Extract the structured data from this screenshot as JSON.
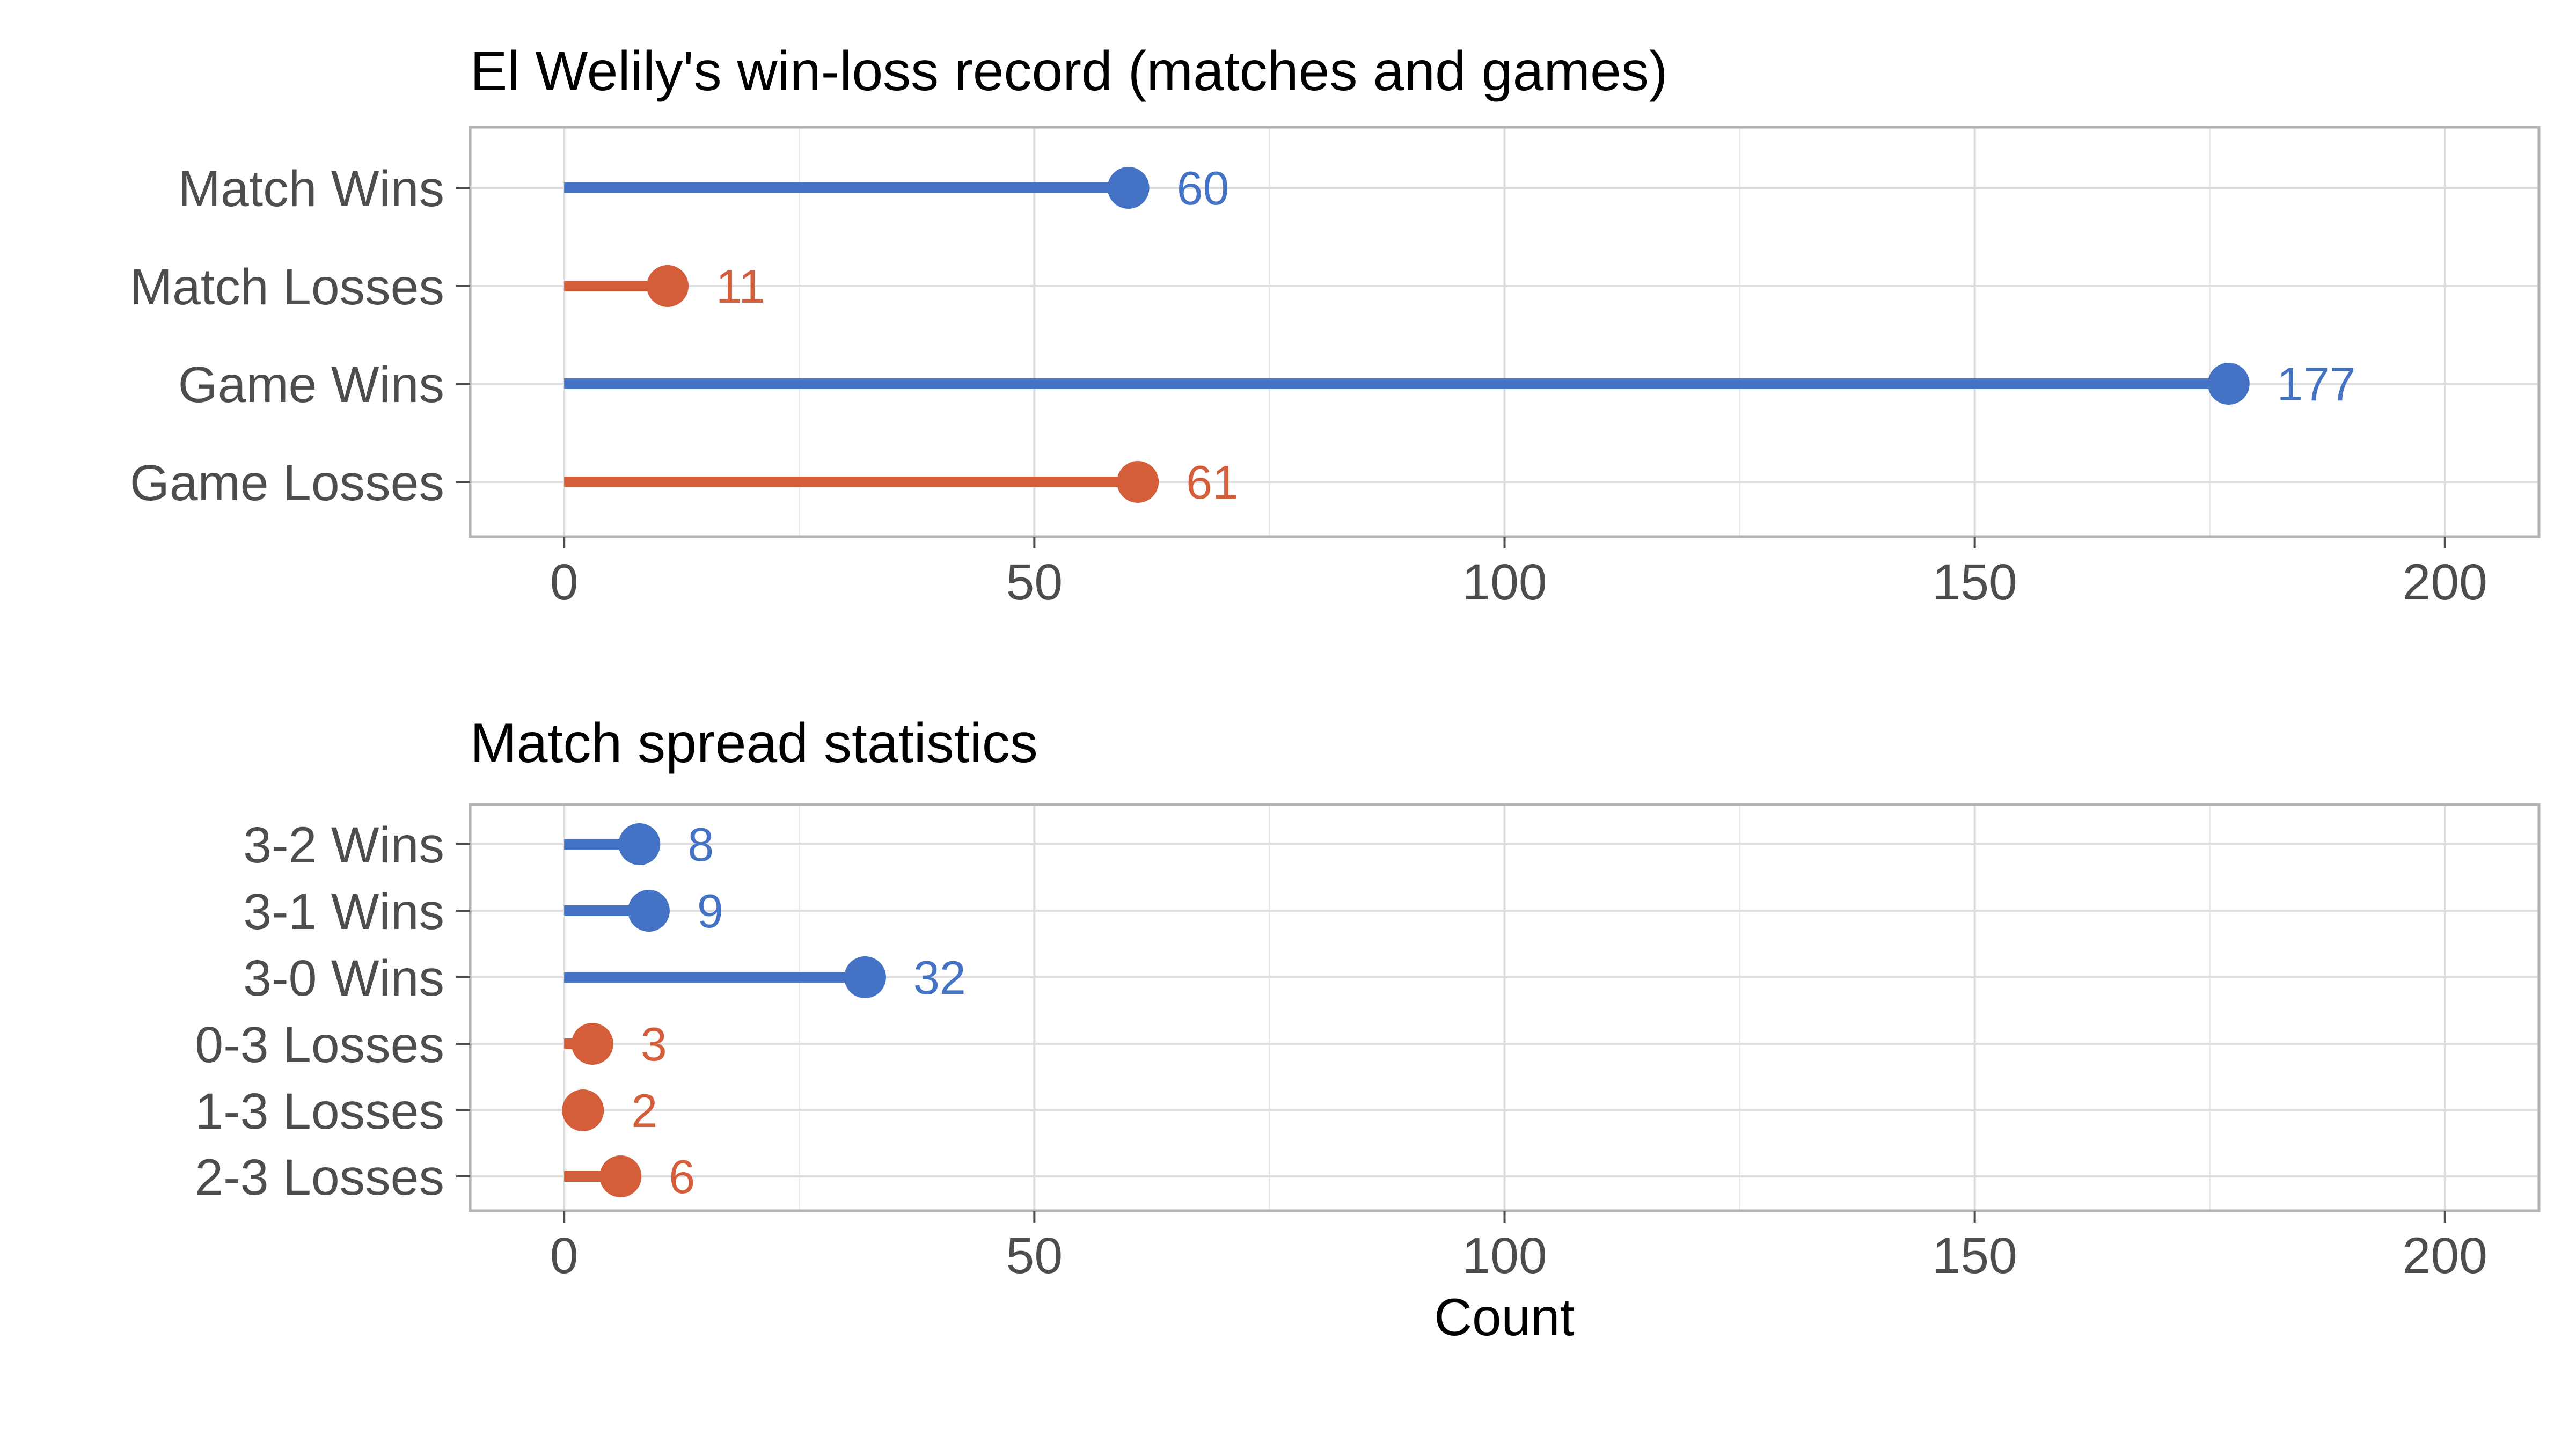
{
  "chart_data": [
    {
      "type": "lollipop",
      "orientation": "horizontal",
      "title": "El Welily's win-loss record (matches and games)",
      "xlabel": "",
      "ylabel": "",
      "xlim": [
        -10,
        210
      ],
      "xticks": [
        0,
        50,
        100,
        150,
        200
      ],
      "grid": true,
      "categories": [
        "Match Wins",
        "Match Losses",
        "Game Wins",
        "Game Losses"
      ],
      "values": [
        60,
        11,
        177,
        61
      ],
      "outcome": [
        "win",
        "loss",
        "win",
        "loss"
      ]
    },
    {
      "type": "lollipop",
      "orientation": "horizontal",
      "title": "Match spread statistics",
      "xlabel": "Count",
      "ylabel": "",
      "xlim": [
        -10,
        210
      ],
      "xticks": [
        0,
        50,
        100,
        150,
        200
      ],
      "grid": true,
      "categories": [
        "3-2 Wins",
        "3-1 Wins",
        "3-0 Wins",
        "0-3 Losses",
        "1-3 Losses",
        "2-3 Losses"
      ],
      "values": [
        8,
        9,
        32,
        3,
        2,
        6
      ],
      "outcome": [
        "win",
        "win",
        "win",
        "loss",
        "loss",
        "loss"
      ]
    }
  ],
  "colors": {
    "win": "#4472c4",
    "loss": "#d45d3a",
    "grid": "#dcdcdc",
    "panel_border": "#b3b3b3"
  }
}
